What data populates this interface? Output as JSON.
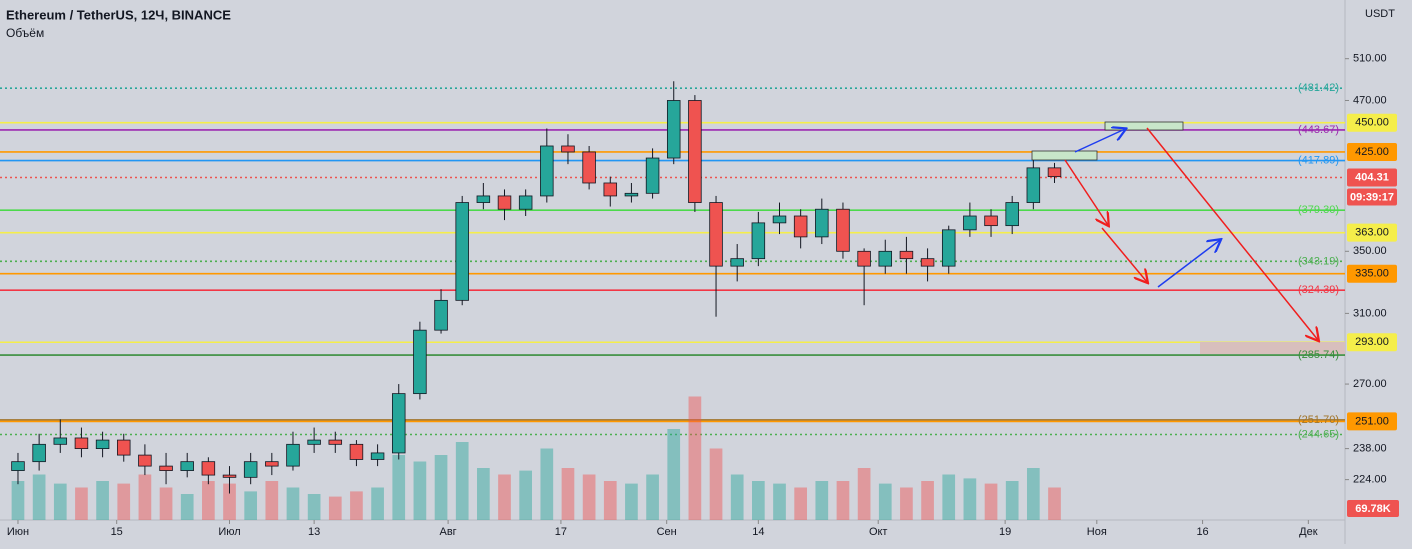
{
  "chart_data": {
    "type": "candlestick",
    "title": "Ethereum / TetherUS, 12Ч, BINANCE",
    "subtitle": "Объём",
    "currency": "USDT",
    "log_scale": true,
    "ylim": [
      207,
      572
    ],
    "yticks": [
      {
        "value": 510,
        "label": "510.00"
      },
      {
        "value": 470,
        "label": "470.00"
      },
      {
        "value": 350,
        "label": "350.00"
      },
      {
        "value": 310,
        "label": "310.00"
      },
      {
        "value": 270,
        "label": "270.00"
      },
      {
        "value": 238,
        "label": "238.00"
      },
      {
        "value": 224,
        "label": "224.00"
      }
    ],
    "xlim": [
      -2.55,
      188.2
    ],
    "xticks": [
      {
        "value": 0,
        "label": "Июн"
      },
      {
        "value": 14,
        "label": "15"
      },
      {
        "value": 30,
        "label": "Июл"
      },
      {
        "value": 42,
        "label": "13"
      },
      {
        "value": 61,
        "label": "Авг"
      },
      {
        "value": 77,
        "label": "17"
      },
      {
        "value": 92,
        "label": "Сен"
      },
      {
        "value": 105,
        "label": "14"
      },
      {
        "value": 122,
        "label": "Окт"
      },
      {
        "value": 140,
        "label": "19"
      },
      {
        "value": 153,
        "label": "Ноя"
      },
      {
        "value": 168,
        "label": "16"
      },
      {
        "value": 183,
        "label": "Дек"
      }
    ],
    "x": [
      0,
      3,
      6,
      9,
      12,
      15,
      18,
      21,
      24,
      27,
      30,
      33,
      36,
      39,
      42,
      45,
      48,
      51,
      54,
      57,
      60,
      63,
      66,
      69,
      72,
      75,
      78,
      81,
      84,
      87,
      90,
      93,
      96,
      99,
      102,
      105,
      108,
      111,
      114,
      117,
      120,
      123,
      126,
      129,
      132,
      135,
      138,
      141,
      144,
      147
    ],
    "open": [
      228,
      232,
      240,
      243,
      238,
      242,
      235,
      230,
      228,
      232,
      226,
      225,
      232,
      230,
      240,
      242,
      240,
      233,
      236,
      265,
      300,
      318,
      385,
      390,
      380,
      390,
      430,
      425,
      400,
      390,
      392,
      420,
      470,
      385,
      340,
      345,
      370,
      375,
      360,
      380,
      350,
      340,
      350,
      345,
      340,
      365,
      375,
      368,
      385,
      412
    ],
    "high": [
      236,
      245,
      252,
      248,
      246,
      245,
      240,
      236,
      236,
      234,
      230,
      236,
      236,
      246,
      248,
      246,
      242,
      240,
      270,
      305,
      325,
      390,
      400,
      395,
      395,
      445,
      440,
      430,
      405,
      400,
      428,
      488,
      475,
      390,
      355,
      378,
      385,
      380,
      388,
      385,
      352,
      358,
      360,
      352,
      368,
      385,
      380,
      390,
      420,
      416
    ],
    "low": [
      222,
      228,
      236,
      234,
      234,
      232,
      226,
      222,
      225,
      222,
      218,
      222,
      226,
      228,
      236,
      236,
      230,
      230,
      233,
      262,
      298,
      315,
      380,
      372,
      375,
      385,
      415,
      395,
      382,
      385,
      388,
      415,
      378,
      308,
      330,
      340,
      362,
      352,
      355,
      345,
      315,
      335,
      335,
      330,
      335,
      360,
      360,
      362,
      380,
      400
    ],
    "close": [
      232,
      240,
      243,
      238,
      242,
      235,
      230,
      228,
      232,
      226,
      225,
      232,
      230,
      240,
      242,
      240,
      233,
      236,
      265,
      300,
      318,
      385,
      390,
      380,
      390,
      430,
      425,
      400,
      390,
      392,
      420,
      470,
      385,
      340,
      345,
      370,
      375,
      360,
      380,
      350,
      340,
      350,
      345,
      340,
      365,
      375,
      368,
      385,
      412,
      405
    ],
    "volume": [
      30,
      35,
      28,
      25,
      30,
      28,
      35,
      25,
      20,
      30,
      28,
      22,
      30,
      25,
      20,
      18,
      22,
      25,
      50,
      45,
      50,
      60,
      40,
      35,
      38,
      55,
      40,
      35,
      30,
      28,
      35,
      70,
      95,
      55,
      35,
      30,
      28,
      25,
      30,
      30,
      40,
      28,
      25,
      30,
      35,
      32,
      28,
      30,
      40,
      25
    ],
    "volume_ylim": [
      0,
      400
    ],
    "volume_label": "69.78K",
    "countdown": "09:39:17",
    "up_color": "#26a69a",
    "down_color": "#ef5350",
    "levels": [
      {
        "value": 481.42,
        "label": "(481.42)",
        "color": "#26a69a",
        "style": "dotted",
        "box": false
      },
      {
        "value": 450,
        "label": "450.00",
        "color": "#f5ee4a",
        "style": "solid",
        "box": true
      },
      {
        "value": 443.67,
        "label": "(443.67)",
        "color": "#9c27b0",
        "style": "solid",
        "box": false
      },
      {
        "value": 425,
        "label": "425.00",
        "color": "#ff9800",
        "style": "solid",
        "box": true
      },
      {
        "value": 417.89,
        "label": "(417.89)",
        "color": "#2196f3",
        "style": "solid",
        "box": false
      },
      {
        "value": 404.31,
        "label": "404.31",
        "color": "#ef5350",
        "style": "dotted",
        "box": true
      },
      {
        "value": 379.3,
        "label": "(379.30)",
        "color": "#4cd94c",
        "style": "solid",
        "box": false
      },
      {
        "value": 363,
        "label": "363.00",
        "color": "#f5ee4a",
        "style": "solid",
        "box": true
      },
      {
        "value": 343.19,
        "label": "(343.19)",
        "color": "#4caf50",
        "style": "dotted",
        "box": false
      },
      {
        "value": 335,
        "label": "335.00",
        "color": "#ff9800",
        "style": "solid",
        "box": true
      },
      {
        "value": 324.39,
        "label": "(324.39)",
        "color": "#f23645",
        "style": "solid",
        "box": false
      },
      {
        "value": 293,
        "label": "293.00",
        "color": "#f5ee4a",
        "style": "solid",
        "box": true
      },
      {
        "value": 285.74,
        "label": "(285.74)",
        "color": "#388e3c",
        "style": "solid",
        "box": false
      },
      {
        "value": 251.7,
        "label": "(251.70)",
        "color": "#a1752b",
        "style": "solid",
        "box": false
      },
      {
        "value": 251,
        "label": "251.00",
        "color": "#ff9800",
        "style": "solid",
        "box": true
      },
      {
        "value": 244.65,
        "label": "(244.65)",
        "color": "#4caf50",
        "style": "dotted",
        "box": false
      }
    ]
  }
}
